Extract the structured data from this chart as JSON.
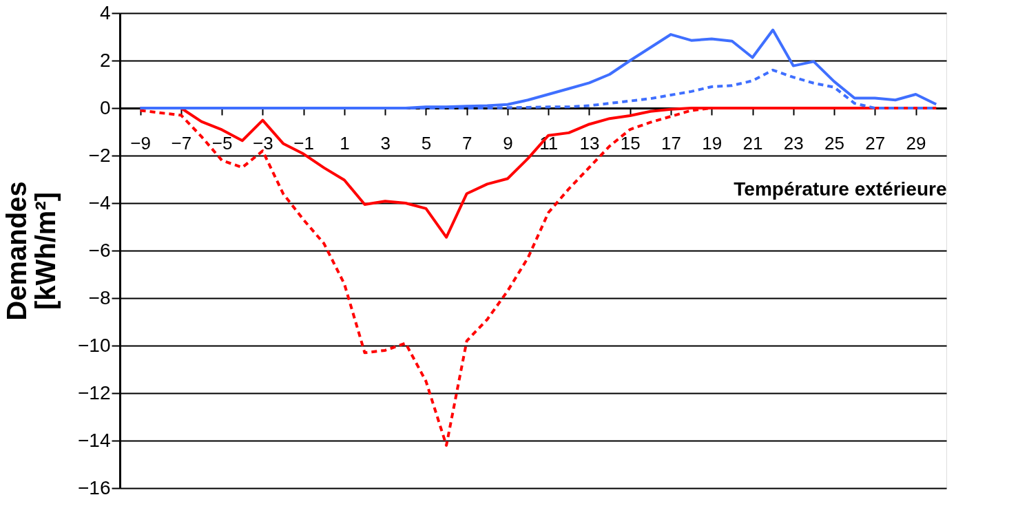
{
  "chart_data": {
    "type": "line",
    "xlabel": "Température extérieure",
    "ylabel": "Demandes [kWh/m²]",
    "x": [
      -9,
      -8,
      -7,
      -6,
      -5,
      -4,
      -3,
      -2,
      -1,
      0,
      1,
      2,
      3,
      4,
      5,
      6,
      7,
      8,
      9,
      10,
      11,
      12,
      13,
      14,
      15,
      16,
      17,
      18,
      19,
      20,
      21,
      22,
      23,
      24,
      25,
      26,
      27,
      28,
      29,
      30
    ],
    "series": [
      {
        "color": "#ff0000",
        "line_style": "dashed",
        "values": [
          -0.1,
          -0.2,
          -0.3,
          -1.2,
          -2.2,
          -2.5,
          -1.8,
          -3.6,
          -4.7,
          -5.7,
          -7.4,
          -10.3,
          -10.2,
          -9.9,
          -11.5,
          -14.2,
          -9.8,
          -8.9,
          -7.7,
          -6.3,
          -4.4,
          -3.4,
          -2.5,
          -1.6,
          -0.9,
          -0.6,
          -0.35,
          -0.1,
          0,
          0,
          0,
          0,
          0,
          0,
          0,
          0,
          0,
          0,
          0,
          0
        ]
      },
      {
        "color": "#ff0000",
        "line_style": "solid",
        "values": [
          0,
          0,
          0,
          -0.57,
          -0.91,
          -1.37,
          -0.51,
          -1.49,
          -1.93,
          -2.51,
          -3.03,
          -4.06,
          -3.92,
          -4.0,
          -4.23,
          -5.44,
          -3.6,
          -3.2,
          -2.97,
          -2.12,
          -1.15,
          -1.04,
          -0.68,
          -0.44,
          -0.32,
          -0.14,
          -0.05,
          0,
          0,
          0,
          0,
          0,
          0,
          0,
          0,
          0,
          0,
          0,
          0,
          0
        ]
      },
      {
        "color": "#3f6fff",
        "line_style": "dashed",
        "values": [
          0,
          0,
          0,
          0,
          0,
          0,
          0,
          0,
          0,
          0,
          0,
          0,
          0,
          0,
          0,
          0,
          0,
          0,
          0.02,
          0.03,
          0.05,
          0.05,
          0.1,
          0.2,
          0.3,
          0.4,
          0.55,
          0.7,
          0.9,
          0.95,
          1.15,
          1.6,
          1.3,
          1.05,
          0.88,
          0.2,
          0,
          0,
          0,
          0
        ]
      },
      {
        "color": "#3f6fff",
        "line_style": "solid",
        "values": [
          0,
          0,
          0,
          0,
          0,
          0,
          0,
          0,
          0,
          0,
          0,
          0,
          0,
          0,
          0.05,
          0.05,
          0.08,
          0.1,
          0.15,
          0.34,
          0.58,
          0.82,
          1.06,
          1.42,
          2.0,
          2.55,
          3.1,
          2.85,
          2.91,
          2.82,
          2.13,
          3.29,
          1.78,
          1.96,
          1.12,
          0.42,
          0.42,
          0.34,
          0.58,
          0.16
        ]
      }
    ],
    "xlim": [
      -10,
      30.5
    ],
    "xticks": [
      -9,
      -7,
      -5,
      -3,
      -1,
      1,
      3,
      5,
      7,
      9,
      11,
      13,
      15,
      17,
      19,
      21,
      23,
      25,
      27,
      29
    ],
    "ylim": [
      -16,
      4
    ],
    "yticks": [
      -16,
      -14,
      -12,
      -10,
      -8,
      -6,
      -4,
      -2,
      0,
      2,
      4
    ],
    "grid": "y",
    "marker": "none"
  }
}
